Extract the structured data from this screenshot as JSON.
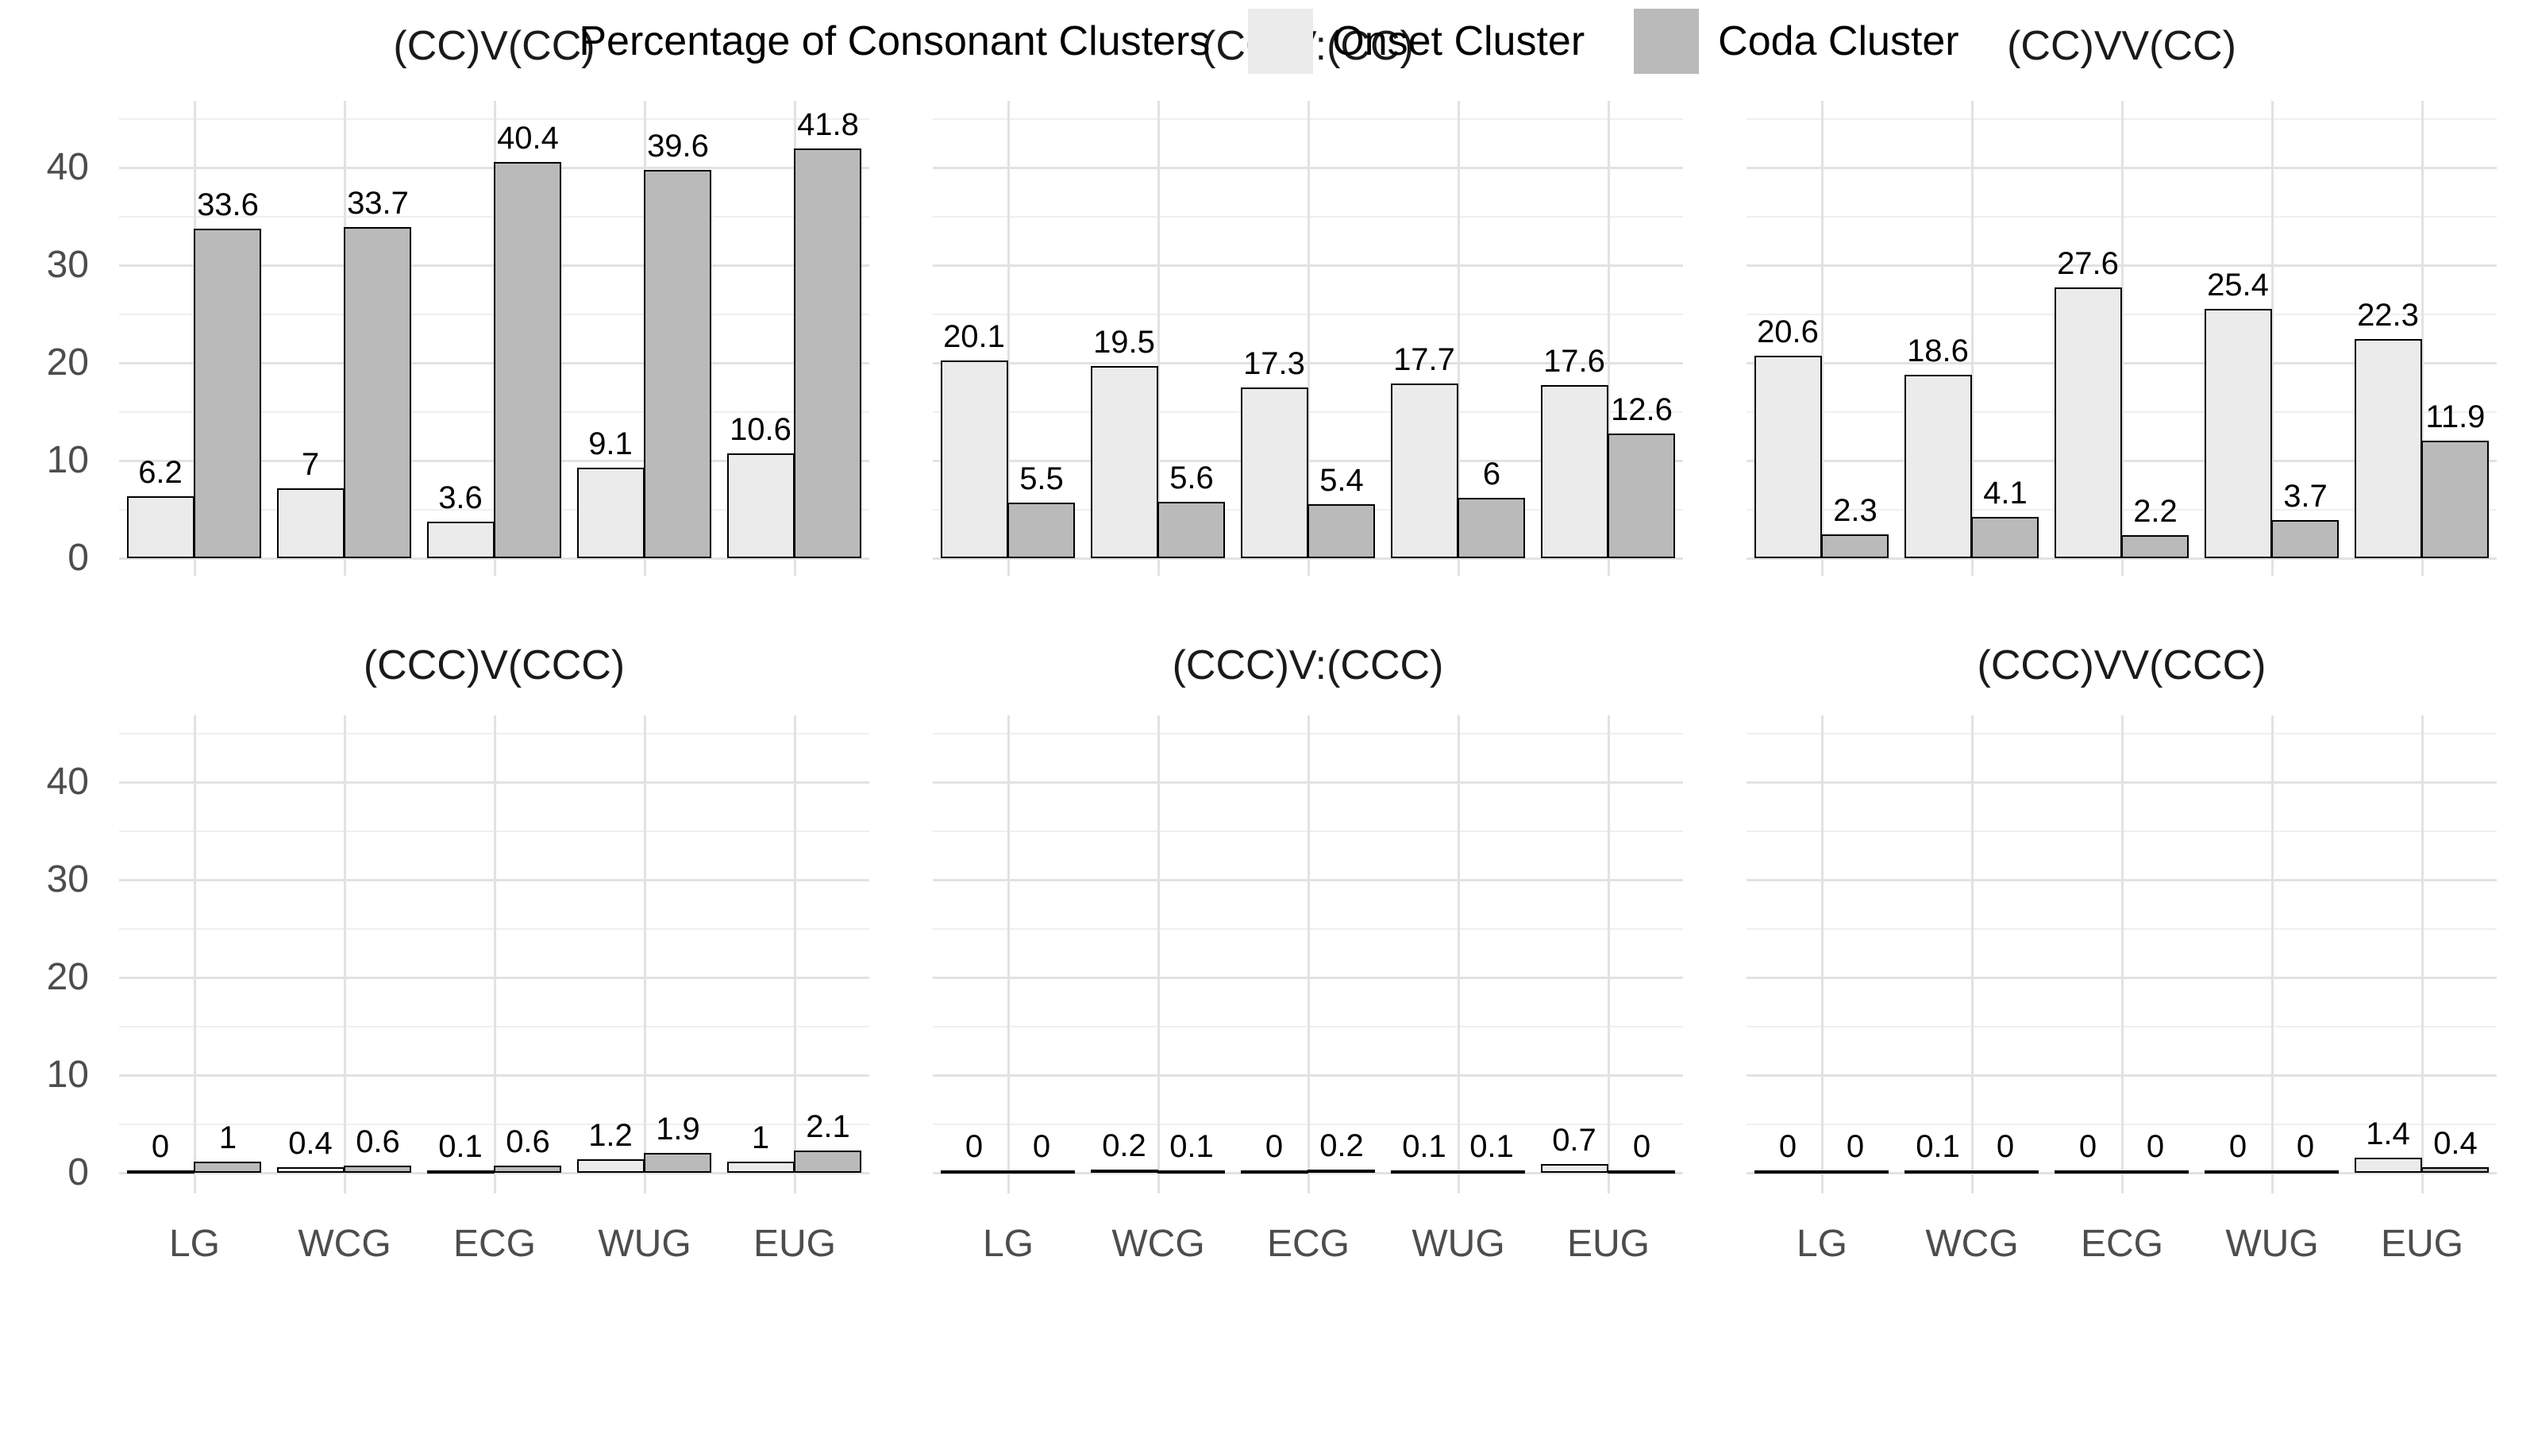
{
  "figure": {
    "background": "#ffffff"
  },
  "axis": {
    "ytick_values": [
      0,
      10,
      20,
      30,
      40
    ],
    "categories": [
      "LG",
      "WCG",
      "ECG",
      "WUG",
      "EUG"
    ]
  },
  "colors": {
    "onset_fill": "#ebebeb",
    "coda_fill": "#bababa",
    "bar_stroke": "#000000",
    "grid_major": "#e2e2e2",
    "grid_minor": "#efefef",
    "axis_text": "#4d4d4d",
    "title_text": "#1a1a1a",
    "value_text": "#000000"
  },
  "legend": {
    "title": "Percentage of Consonant Clusters",
    "entries": [
      {
        "label": "Onset Cluster",
        "color": "#ebebeb"
      },
      {
        "label": "Coda Cluster",
        "color": "#bababa"
      }
    ],
    "position": "bottom"
  },
  "chart_data": [
    {
      "type": "bar",
      "title": "(CC)V(CC)",
      "categories": [
        "LG",
        "WCG",
        "ECG",
        "WUG",
        "EUG"
      ],
      "series": [
        {
          "name": "Onset Cluster",
          "values": [
            6.2,
            7,
            3.6,
            9.1,
            10.6
          ]
        },
        {
          "name": "Coda Cluster",
          "values": [
            33.6,
            33.7,
            40.4,
            39.6,
            41.8
          ]
        }
      ],
      "ylim": [
        0,
        47
      ],
      "yticks": [
        0,
        10,
        20,
        30,
        40
      ],
      "grid": true
    },
    {
      "type": "bar",
      "title": "(CC)V:(CC)",
      "categories": [
        "LG",
        "WCG",
        "ECG",
        "WUG",
        "EUG"
      ],
      "series": [
        {
          "name": "Onset Cluster",
          "values": [
            20.1,
            19.5,
            17.3,
            17.7,
            17.6
          ]
        },
        {
          "name": "Coda Cluster",
          "values": [
            5.5,
            5.6,
            5.4,
            6,
            12.6
          ]
        }
      ],
      "ylim": [
        0,
        47
      ],
      "yticks": [
        0,
        10,
        20,
        30,
        40
      ],
      "grid": true
    },
    {
      "type": "bar",
      "title": "(CC)VV(CC)",
      "categories": [
        "LG",
        "WCG",
        "ECG",
        "WUG",
        "EUG"
      ],
      "series": [
        {
          "name": "Onset Cluster",
          "values": [
            20.6,
            18.6,
            27.6,
            25.4,
            22.3
          ]
        },
        {
          "name": "Coda Cluster",
          "values": [
            2.3,
            4.1,
            2.2,
            3.7,
            11.9
          ]
        }
      ],
      "ylim": [
        0,
        47
      ],
      "yticks": [
        0,
        10,
        20,
        30,
        40
      ],
      "grid": true
    },
    {
      "type": "bar",
      "title": "(CCC)V(CCC)",
      "categories": [
        "LG",
        "WCG",
        "ECG",
        "WUG",
        "EUG"
      ],
      "series": [
        {
          "name": "Onset Cluster",
          "values": [
            0,
            0.4,
            0.1,
            1.2,
            1
          ]
        },
        {
          "name": "Coda Cluster",
          "values": [
            1,
            0.6,
            0.6,
            1.9,
            2.1
          ]
        }
      ],
      "ylim": [
        0,
        47
      ],
      "yticks": [
        0,
        10,
        20,
        30,
        40
      ],
      "grid": true
    },
    {
      "type": "bar",
      "title": "(CCC)V:(CCC)",
      "categories": [
        "LG",
        "WCG",
        "ECG",
        "WUG",
        "EUG"
      ],
      "series": [
        {
          "name": "Onset Cluster",
          "values": [
            0,
            0.2,
            0,
            0.1,
            0.7
          ]
        },
        {
          "name": "Coda Cluster",
          "values": [
            0,
            0.1,
            0.2,
            0.1,
            0
          ]
        }
      ],
      "ylim": [
        0,
        47
      ],
      "yticks": [
        0,
        10,
        20,
        30,
        40
      ],
      "grid": true
    },
    {
      "type": "bar",
      "title": "(CCC)VV(CCC)",
      "categories": [
        "LG",
        "WCG",
        "ECG",
        "WUG",
        "EUG"
      ],
      "series": [
        {
          "name": "Onset Cluster",
          "values": [
            0,
            0.1,
            0,
            0,
            1.4
          ]
        },
        {
          "name": "Coda Cluster",
          "values": [
            0,
            0,
            0,
            0,
            0.4
          ]
        }
      ],
      "ylim": [
        0,
        47
      ],
      "yticks": [
        0,
        10,
        20,
        30,
        40
      ],
      "grid": true
    }
  ]
}
